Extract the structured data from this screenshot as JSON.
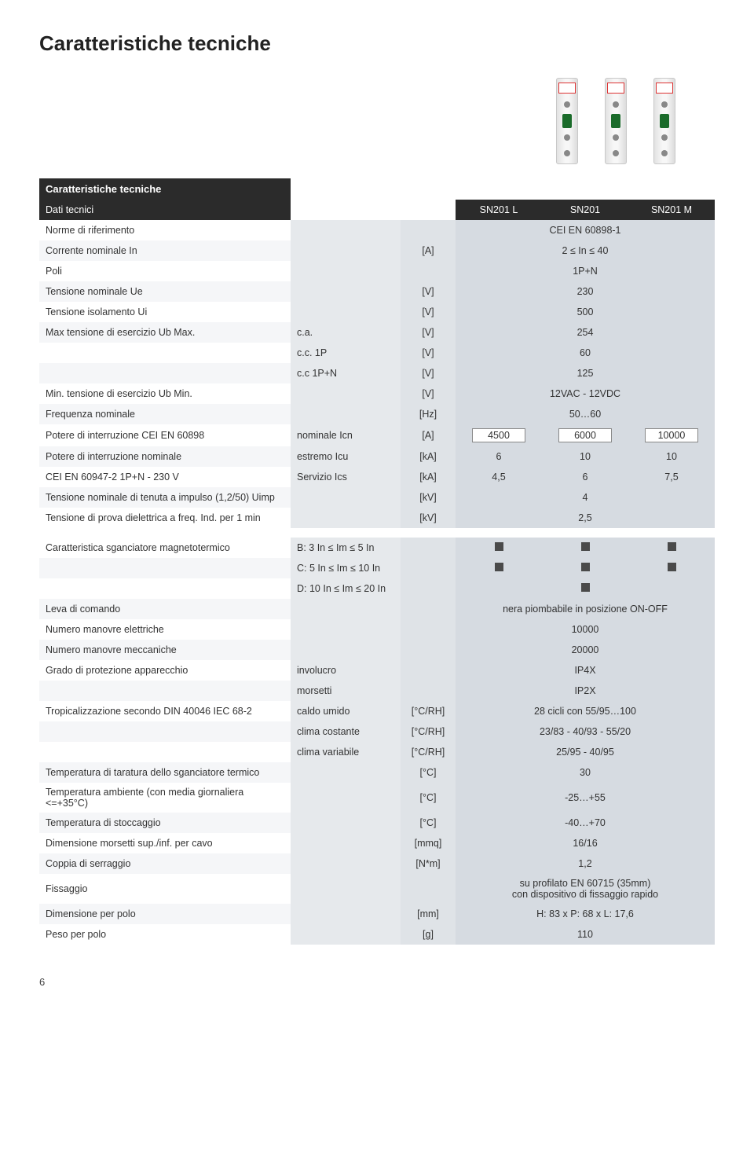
{
  "page": {
    "title": "Caratteristiche tecniche",
    "number": "6"
  },
  "headers": {
    "section": "Caratteristiche tecniche",
    "subsection": "Dati tecnici",
    "col1": "SN201 L",
    "col2": "SN201",
    "col3": "SN201 M"
  },
  "rows": {
    "r1": {
      "label": "Norme di riferimento",
      "span": "CEI EN 60898-1"
    },
    "r2": {
      "label": "Corrente nominale In",
      "unit": "[A]",
      "span": "2 ≤ In ≤ 40"
    },
    "r3": {
      "label": "Poli",
      "span": "1P+N"
    },
    "r4": {
      "label": "Tensione nominale Ue",
      "unit": "[V]",
      "span": "230"
    },
    "r5": {
      "label": "Tensione isolamento Ui",
      "unit": "[V]",
      "span": "500"
    },
    "r6": {
      "label": "Max tensione di esercizio Ub Max.",
      "sub": "c.a.",
      "unit": "[V]",
      "span": "254"
    },
    "r7": {
      "sub": "c.c. 1P",
      "unit": "[V]",
      "span": "60"
    },
    "r8": {
      "sub": "c.c 1P+N",
      "unit": "[V]",
      "span": "125"
    },
    "r9": {
      "label": "Min. tensione di esercizio Ub Min.",
      "unit": "[V]",
      "span": "12VAC - 12VDC"
    },
    "r10": {
      "label": "Frequenza nominale",
      "unit": "[Hz]",
      "span": "50…60"
    },
    "r11": {
      "label": "Potere di interruzione CEI EN 60898",
      "sub": "nominale Icn",
      "unit": "[A]",
      "v1": "4500",
      "v2": "6000",
      "v3": "10000"
    },
    "r12": {
      "label": "Potere di interruzione nominale",
      "sub": "estremo Icu",
      "unit": "[kA]",
      "v1": "6",
      "v2": "10",
      "v3": "10"
    },
    "r13": {
      "label": "CEI EN 60947-2  1P+N - 230 V",
      "sub": "Servizio Ics",
      "unit": "[kA]",
      "v1": "4,5",
      "v2": "6",
      "v3": "7,5"
    },
    "r14": {
      "label": "Tensione nominale di tenuta a impulso (1,2/50) Uimp",
      "unit": "[kV]",
      "span": "4"
    },
    "r15": {
      "label": "Tensione di prova dielettrica a freq. Ind. per 1 min",
      "unit": "[kV]",
      "span": "2,5"
    },
    "r16": {
      "label": "Caratteristica sganciatore magnetotermico",
      "sub": "B: 3 In ≤ Im ≤ 5 In"
    },
    "r17": {
      "sub": "C: 5 In ≤ Im ≤ 10 In"
    },
    "r18": {
      "sub": "D: 10 In ≤ Im ≤ 20 In"
    },
    "r19": {
      "label": "Leva di comando",
      "span": "nera piombabile in posizione ON-OFF"
    },
    "r20": {
      "label": "Numero manovre elettriche",
      "span": "10000"
    },
    "r21": {
      "label": "Numero manovre meccaniche",
      "span": "20000"
    },
    "r22": {
      "label": "Grado di protezione apparecchio",
      "sub": "involucro",
      "span": "IP4X"
    },
    "r23": {
      "sub": "morsetti",
      "span": "IP2X"
    },
    "r24": {
      "label": "Tropicalizzazione secondo DIN 40046 IEC 68-2",
      "sub": "caldo umido",
      "unit": "[°C/RH]",
      "span": "28 cicli con 55/95…100"
    },
    "r25": {
      "sub": "clima costante",
      "unit": "[°C/RH]",
      "span": "23/83 - 40/93 - 55/20"
    },
    "r26": {
      "sub": "clima variabile",
      "unit": "[°C/RH]",
      "span": "25/95 - 40/95"
    },
    "r27": {
      "label": "Temperatura di taratura dello sganciatore termico",
      "unit": "[°C]",
      "span": "30"
    },
    "r28": {
      "label": "Temperatura ambiente (con media giornaliera <=+35°C)",
      "unit": "[°C]",
      "span": "-25…+55"
    },
    "r29": {
      "label": "Temperatura di stoccaggio",
      "unit": "[°C]",
      "span": "-40…+70"
    },
    "r30": {
      "label": "Dimensione morsetti sup./inf. per cavo",
      "unit": "[mmq]",
      "span": "16/16"
    },
    "r31": {
      "label": "Coppia di serraggio",
      "unit": "[N*m]",
      "span": "1,2"
    },
    "r32": {
      "label": "Fissaggio",
      "span": "su profilato EN 60715 (35mm)\ncon dispositivo di fissaggio rapido"
    },
    "r33": {
      "label": "Dimensione per polo",
      "unit": "[mm]",
      "span": "H: 83 x P: 68 x L: 17,6"
    },
    "r34": {
      "label": "Peso per polo",
      "unit": "[g]",
      "span": "110"
    }
  },
  "style": {
    "header_bg": "#2b2b2b",
    "header_fg": "#ffffff",
    "colhdr_bg": "#7ba3c4",
    "sub_bg": "#e6e9ec",
    "unit_bg": "#dfe3e7",
    "val_bg": "#d6dbe1",
    "alt_label_bg": "#f5f6f8",
    "body_fontsize": 12.5,
    "title_fontsize": 26
  }
}
